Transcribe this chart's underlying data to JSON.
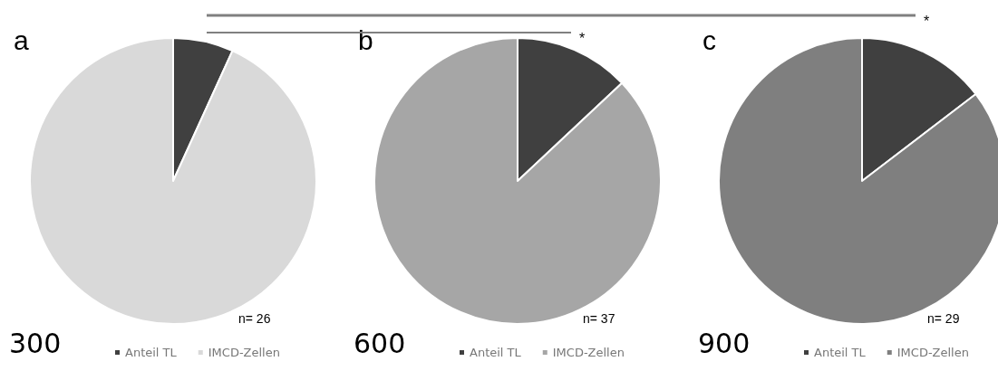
{
  "chart_data": [
    {
      "type": "pie",
      "title": "a",
      "categories": [
        "Anteil TL",
        "IMCD-Zellen"
      ],
      "values": [
        6.8,
        93.2
      ],
      "colors": [
        "#404040",
        "#d9d9d9"
      ],
      "legend": "bottom",
      "annotations": [
        "n= 26",
        "300"
      ]
    },
    {
      "type": "pie",
      "title": "b",
      "categories": [
        "Anteil TL",
        "IMCD-Zellen"
      ],
      "values": [
        13,
        87
      ],
      "colors": [
        "#404040",
        "#a6a6a6"
      ],
      "legend": "bottom",
      "annotations": [
        "n= 37",
        "600",
        "*"
      ]
    },
    {
      "type": "pie",
      "title": "c",
      "categories": [
        "Anteil TL",
        "IMCD-Zellen"
      ],
      "values": [
        14.6,
        85.4
      ],
      "colors": [
        "#404040",
        "#7f7f7f"
      ],
      "legend": "bottom",
      "annotations": [
        "n= 29",
        "900",
        "*"
      ]
    }
  ]
}
